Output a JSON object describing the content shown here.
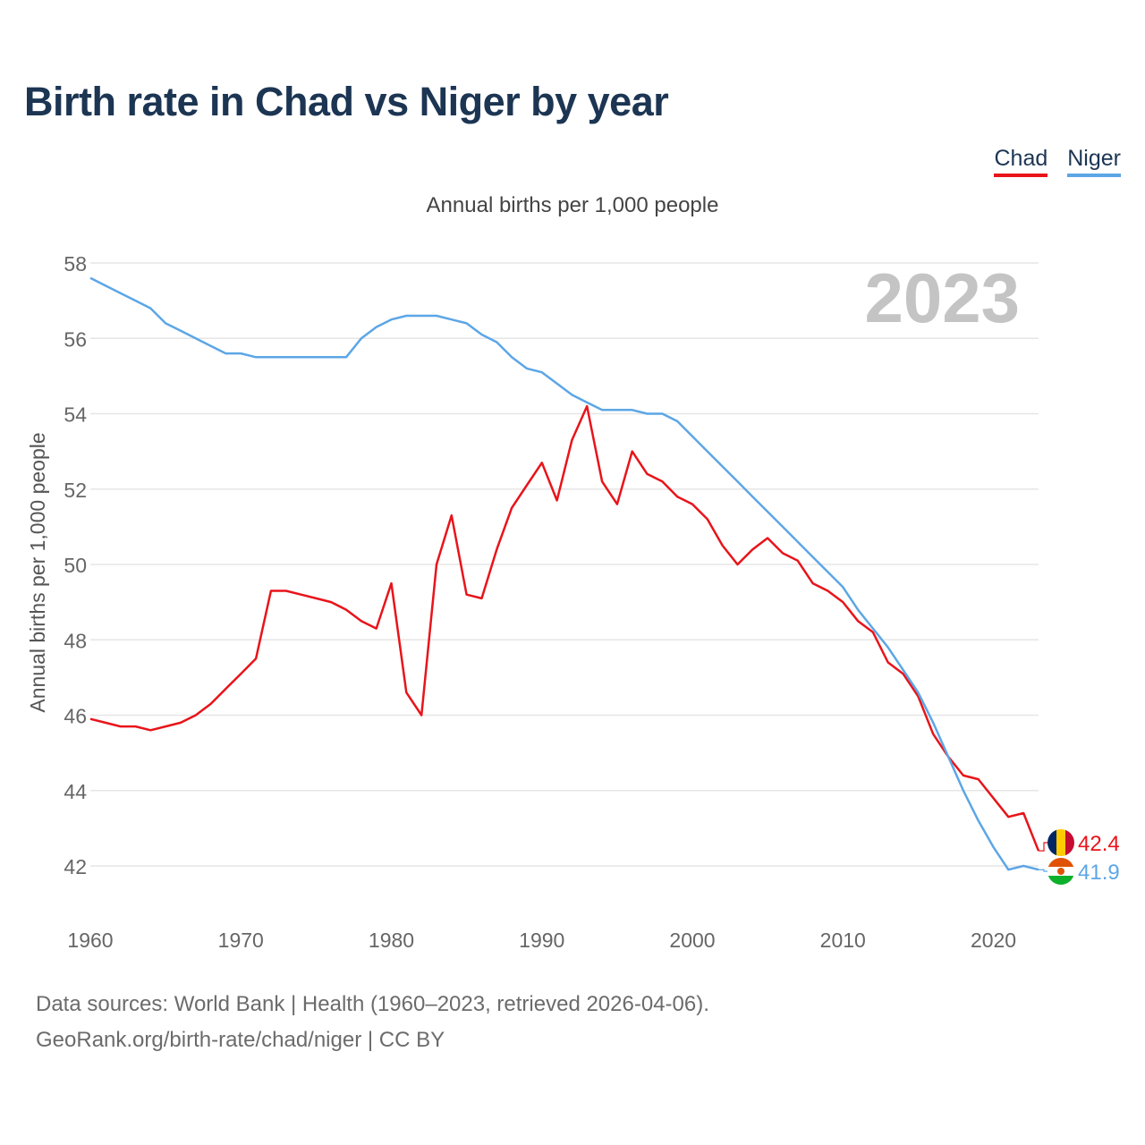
{
  "title": "Birth rate in Chad vs Niger by year",
  "legend": [
    {
      "name": "Chad",
      "color": "#e8141a"
    },
    {
      "name": "Niger",
      "color": "#5ca6e6"
    }
  ],
  "chart_data": {
    "type": "line",
    "title": "Birth rate in Chad vs Niger by year",
    "subtitle": "Annual births per 1,000 people",
    "ylabel": "Annual births per 1,000 people",
    "xlabel": "",
    "year_label": "2023",
    "xlim": [
      1960,
      2023
    ],
    "ylim": [
      41,
      58
    ],
    "x_ticks": [
      1960,
      1970,
      1980,
      1990,
      2000,
      2010,
      2020
    ],
    "y_ticks": [
      42,
      44,
      46,
      48,
      50,
      52,
      54,
      56,
      58
    ],
    "grid": true,
    "legend_position": "top-right",
    "x": [
      1960,
      1961,
      1962,
      1963,
      1964,
      1965,
      1966,
      1967,
      1968,
      1969,
      1970,
      1971,
      1972,
      1973,
      1974,
      1975,
      1976,
      1977,
      1978,
      1979,
      1980,
      1981,
      1982,
      1983,
      1984,
      1985,
      1986,
      1987,
      1988,
      1989,
      1990,
      1991,
      1992,
      1993,
      1994,
      1995,
      1996,
      1997,
      1998,
      1999,
      2000,
      2001,
      2002,
      2003,
      2004,
      2005,
      2006,
      2007,
      2008,
      2009,
      2010,
      2011,
      2012,
      2013,
      2014,
      2015,
      2016,
      2017,
      2018,
      2019,
      2020,
      2021,
      2022,
      2023
    ],
    "series": [
      {
        "name": "Chad",
        "color": "#e8141a",
        "end_label": "42.4",
        "values": [
          45.9,
          45.8,
          45.7,
          45.7,
          45.6,
          45.7,
          45.8,
          46.0,
          46.3,
          46.7,
          47.1,
          47.5,
          49.3,
          49.3,
          49.2,
          49.1,
          49.0,
          48.8,
          48.5,
          48.3,
          49.5,
          46.6,
          46.0,
          50.0,
          51.3,
          49.2,
          49.1,
          50.4,
          51.5,
          52.1,
          52.7,
          51.7,
          53.3,
          54.2,
          52.2,
          51.6,
          53.0,
          52.4,
          52.2,
          51.8,
          51.6,
          51.2,
          50.5,
          50.0,
          50.4,
          50.7,
          50.3,
          50.1,
          49.5,
          49.3,
          49.0,
          48.5,
          48.2,
          47.4,
          47.1,
          46.5,
          45.5,
          44.9,
          44.4,
          44.3,
          43.8,
          43.3,
          43.4,
          42.4
        ]
      },
      {
        "name": "Niger",
        "color": "#5ca6e6",
        "end_label": "41.9",
        "values": [
          57.6,
          57.4,
          57.2,
          57.0,
          56.8,
          56.4,
          56.2,
          56.0,
          55.8,
          55.6,
          55.6,
          55.5,
          55.5,
          55.5,
          55.5,
          55.5,
          55.5,
          55.5,
          56.0,
          56.3,
          56.5,
          56.6,
          56.6,
          56.6,
          56.5,
          56.4,
          56.1,
          55.9,
          55.5,
          55.2,
          55.1,
          54.8,
          54.5,
          54.3,
          54.1,
          54.1,
          54.1,
          54.0,
          54.0,
          53.8,
          53.4,
          53.0,
          52.6,
          52.2,
          51.8,
          51.4,
          51.0,
          50.6,
          50.2,
          49.8,
          49.4,
          48.8,
          48.3,
          47.8,
          47.2,
          46.6,
          45.8,
          44.9,
          44.0,
          43.2,
          42.5,
          41.9,
          42.0,
          41.9
        ]
      }
    ]
  },
  "footer": {
    "sources": "Data sources: World Bank | Health (1960–2023, retrieved 2026-04-06).",
    "credit": "GeoRank.org/birth-rate/chad/niger | CC BY"
  }
}
